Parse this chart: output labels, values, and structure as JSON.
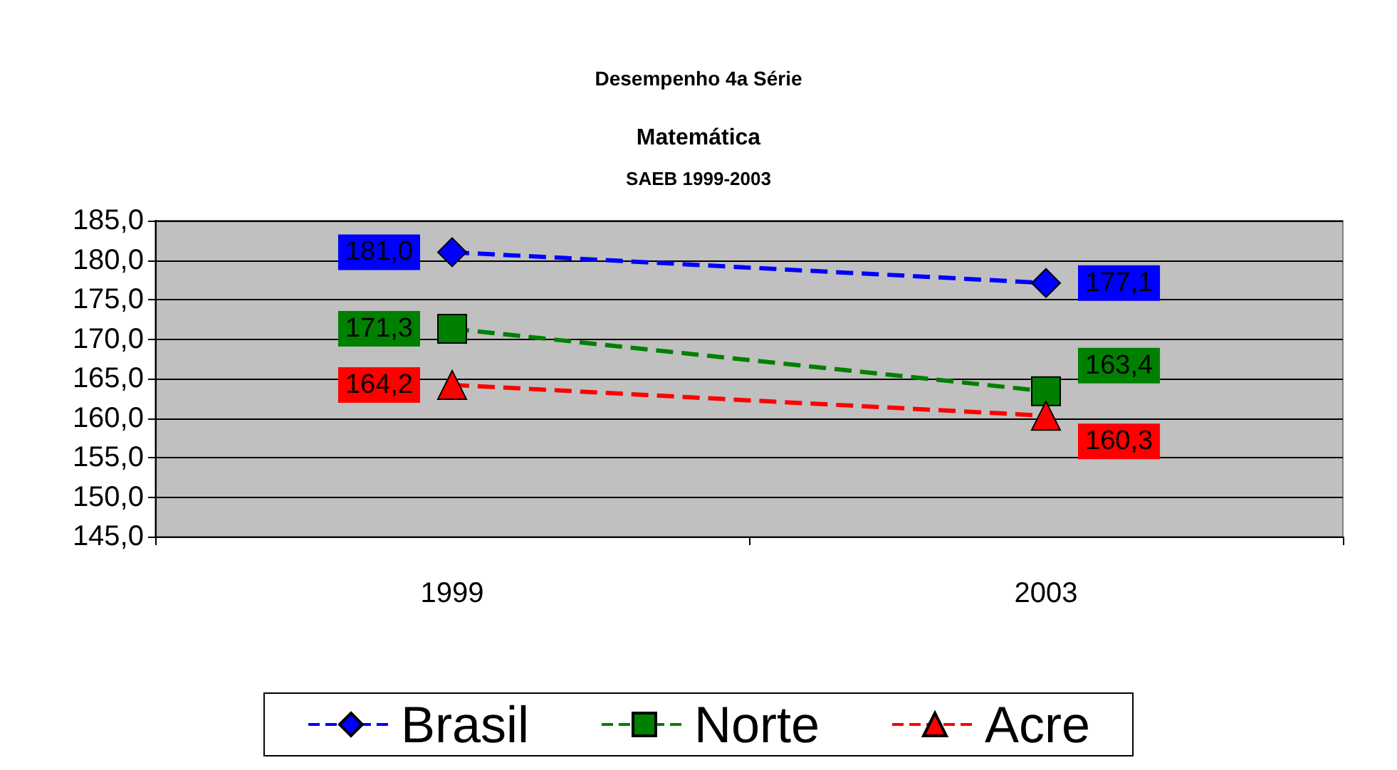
{
  "chart_data": {
    "type": "line",
    "title": "Desempenho 4a Série",
    "subtitle": "Matemática",
    "annotations": [
      "SAEB 1999-2003"
    ],
    "categories": [
      "1999",
      "2003"
    ],
    "series": [
      {
        "name": "Brasil",
        "color": "#0000ff",
        "marker": "diamond",
        "values": [
          181.0,
          177.1
        ],
        "value_labels": [
          "181,0",
          "177,1"
        ]
      },
      {
        "name": "Norte",
        "color": "#008000",
        "marker": "square",
        "values": [
          171.3,
          163.4
        ],
        "value_labels": [
          "171,3",
          "163,4"
        ]
      },
      {
        "name": "Acre",
        "color": "#ff0000",
        "marker": "triangle",
        "values": [
          164.2,
          160.3
        ],
        "value_labels": [
          "164,2",
          "160,3"
        ]
      }
    ],
    "ylim": [
      145,
      185
    ],
    "yticks": [
      {
        "value": 145,
        "label": "145,0"
      },
      {
        "value": 150,
        "label": "150,0"
      },
      {
        "value": 155,
        "label": "155,0"
      },
      {
        "value": 160,
        "label": "160,0"
      },
      {
        "value": 165,
        "label": "165,0"
      },
      {
        "value": 170,
        "label": "170,0"
      },
      {
        "value": 175,
        "label": "175,0"
      },
      {
        "value": 180,
        "label": "180,0"
      },
      {
        "value": 185,
        "label": "185,0"
      }
    ],
    "grid": "y",
    "legend": "bottom",
    "line_style": "dashed"
  }
}
